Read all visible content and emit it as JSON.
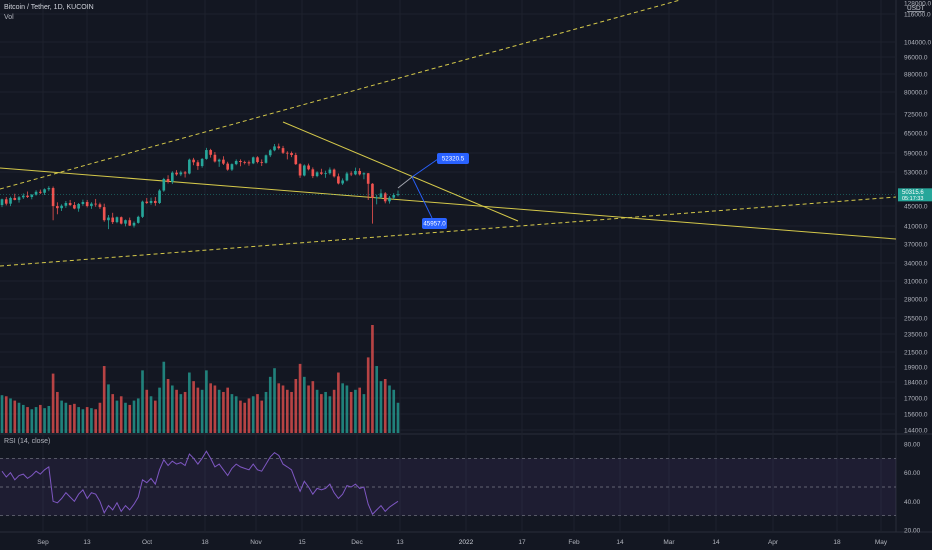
{
  "header": {
    "symbol_line": "Bitcoin / Tether, 1D, KUCOIN",
    "vol_label": "Vol"
  },
  "rsi_label": "RSI (14, close)",
  "price_axis": {
    "currency_tag": "USDT",
    "ticks": [
      "128000.0",
      "116000.0",
      "104000.0",
      "96000.0",
      "88000.0",
      "80000.0",
      "72500.0",
      "65000.0",
      "59000.0",
      "53000.0",
      "45000.0",
      "41000.0",
      "37000.0",
      "34000.0",
      "31000.0",
      "28000.0",
      "25500.0",
      "23500.0",
      "21500.0",
      "19900.0",
      "18400.0",
      "17000.0",
      "15600.0",
      "14400.0"
    ],
    "last_price": "50315.6",
    "countdown": "05:17:33"
  },
  "rsi_axis": {
    "ticks": [
      "80.00",
      "60.00",
      "40.00",
      "20.00"
    ]
  },
  "time_axis": {
    "labels": [
      "Sep",
      "13",
      "Oct",
      "18",
      "Nov",
      "15",
      "Dec",
      "13",
      "2022",
      "17",
      "Feb",
      "14",
      "Mar",
      "14",
      "Apr",
      "18",
      "May"
    ]
  },
  "annotations": {
    "target_up": "52320.5",
    "target_down": "45957.0"
  },
  "colors": {
    "background": "#131722",
    "up": "#26a69a",
    "down": "#ef5350",
    "trendline": "#d4c84a",
    "forecast": "#2962ff",
    "rsi_line": "#7e57c2",
    "last_price_tag": "#26a69a"
  },
  "chart_data": {
    "type": "candlestick",
    "log_scale": true,
    "grid": true,
    "candles_ohlc": [
      [
        47100,
        49000,
        46500,
        48800
      ],
      [
        48800,
        49500,
        47000,
        47500
      ],
      [
        47500,
        49600,
        46800,
        49200
      ],
      [
        49200,
        50500,
        48500,
        48600
      ],
      [
        48600,
        49800,
        47800,
        49400
      ],
      [
        49400,
        50600,
        48900,
        49900
      ],
      [
        49900,
        51200,
        49200,
        49500
      ],
      [
        49500,
        50400,
        48800,
        50200
      ],
      [
        50200,
        51600,
        49900,
        51100
      ],
      [
        51100,
        51800,
        50400,
        50800
      ],
      [
        50800,
        52200,
        50100,
        51900
      ],
      [
        51900,
        52900,
        51300,
        52300
      ],
      [
        52300,
        52800,
        42900,
        46800
      ],
      [
        46800,
        47900,
        44500,
        46200
      ],
      [
        46200,
        47300,
        45400,
        46900
      ],
      [
        46900,
        48300,
        46300,
        47700
      ],
      [
        47700,
        48600,
        46800,
        47100
      ],
      [
        47100,
        48000,
        45900,
        46100
      ],
      [
        46100,
        47700,
        45200,
        47400
      ],
      [
        47400,
        48700,
        46900,
        48000
      ],
      [
        48000,
        48600,
        46400,
        46800
      ],
      [
        46800,
        47900,
        46000,
        47500
      ],
      [
        47500,
        48900,
        46600,
        47300
      ],
      [
        47300,
        47800,
        46000,
        46500
      ],
      [
        46500,
        47500,
        42500,
        42900
      ],
      [
        42900,
        44300,
        40600,
        43600
      ],
      [
        43600,
        44900,
        41900,
        42400
      ],
      [
        42400,
        43900,
        42100,
        43700
      ],
      [
        43700,
        43900,
        41800,
        42000
      ],
      [
        42000,
        43100,
        41300,
        42900
      ],
      [
        42900,
        43600,
        41400,
        41500
      ],
      [
        41500,
        42600,
        41000,
        42200
      ],
      [
        42200,
        44100,
        42000,
        43800
      ],
      [
        43800,
        48400,
        43500,
        48100
      ],
      [
        48100,
        49200,
        47400,
        47700
      ],
      [
        47700,
        49300,
        47200,
        48300
      ],
      [
        48300,
        49500,
        46900,
        47700
      ],
      [
        47700,
        51900,
        47400,
        51500
      ],
      [
        51500,
        55700,
        51100,
        55300
      ],
      [
        55300,
        56600,
        53800,
        54300
      ],
      [
        54300,
        58000,
        53600,
        57500
      ],
      [
        57500,
        58400,
        56400,
        56900
      ],
      [
        56900,
        58200,
        56300,
        57600
      ],
      [
        57600,
        58100,
        55800,
        57200
      ],
      [
        57200,
        62700,
        56900,
        62300
      ],
      [
        62300,
        63000,
        60200,
        61300
      ],
      [
        61300,
        62100,
        58500,
        59900
      ],
      [
        59900,
        62900,
        59300,
        62600
      ],
      [
        62600,
        67000,
        62300,
        66100
      ],
      [
        66100,
        66600,
        63100,
        64200
      ],
      [
        64200,
        65300,
        61200,
        61600
      ],
      [
        61600,
        62700,
        59600,
        62300
      ],
      [
        62300,
        63600,
        60300,
        60800
      ],
      [
        60800,
        61500,
        58200,
        58600
      ],
      [
        58600,
        60900,
        58100,
        60600
      ],
      [
        60600,
        62400,
        60200,
        61800
      ],
      [
        61800,
        62400,
        59800,
        61400
      ],
      [
        61400,
        61900,
        60500,
        61300
      ],
      [
        61300,
        62000,
        60000,
        60900
      ],
      [
        60900,
        63500,
        60600,
        63200
      ],
      [
        63200,
        63600,
        60900,
        61400
      ],
      [
        61400,
        62400,
        59900,
        61100
      ],
      [
        61100,
        64300,
        60800,
        64000
      ],
      [
        64000,
        66500,
        63300,
        66000
      ],
      [
        66000,
        68600,
        65600,
        67600
      ],
      [
        67600,
        68800,
        66300,
        66900
      ],
      [
        66900,
        67800,
        64500,
        65000
      ],
      [
        65000,
        65600,
        62400,
        64900
      ],
      [
        64900,
        65500,
        63300,
        64100
      ],
      [
        64100,
        65000,
        60300,
        60600
      ],
      [
        60600,
        61000,
        55700,
        56500
      ],
      [
        56500,
        60500,
        56200,
        60100
      ],
      [
        60100,
        60800,
        58300,
        58700
      ],
      [
        58700,
        59400,
        55600,
        56300
      ],
      [
        56300,
        58000,
        55900,
        57600
      ],
      [
        57600,
        58900,
        56700,
        57100
      ],
      [
        57100,
        58200,
        55700,
        57300
      ],
      [
        57300,
        59400,
        56800,
        58600
      ],
      [
        58600,
        59000,
        55800,
        56200
      ],
      [
        56200,
        57200,
        53500,
        53800
      ],
      [
        53800,
        55500,
        53300,
        54800
      ],
      [
        54800,
        57800,
        54500,
        57200
      ],
      [
        57200,
        58000,
        56300,
        56900
      ],
      [
        56900,
        59300,
        56600,
        58100
      ],
      [
        58100,
        59100,
        56500,
        56900
      ],
      [
        56900,
        57600,
        55200,
        57300
      ],
      [
        57300,
        57400,
        48600,
        53700
      ],
      [
        53700,
        53900,
        42000,
        49200
      ],
      [
        49200,
        50200,
        47300,
        49400
      ],
      [
        49400,
        51900,
        49000,
        50600
      ],
      [
        50600,
        51000,
        47600,
        48200
      ],
      [
        48200,
        49800,
        47500,
        49300
      ],
      [
        49300,
        50700,
        48800,
        50100
      ],
      [
        50100,
        51500,
        49700,
        50315.6
      ]
    ],
    "volume_relative": [
      0.35,
      0.34,
      0.32,
      0.3,
      0.28,
      0.26,
      0.24,
      0.22,
      0.24,
      0.26,
      0.23,
      0.25,
      0.55,
      0.38,
      0.3,
      0.28,
      0.26,
      0.27,
      0.24,
      0.22,
      0.24,
      0.23,
      0.22,
      0.28,
      0.62,
      0.45,
      0.36,
      0.3,
      0.34,
      0.28,
      0.26,
      0.3,
      0.32,
      0.58,
      0.4,
      0.34,
      0.3,
      0.42,
      0.66,
      0.5,
      0.44,
      0.4,
      0.36,
      0.38,
      0.56,
      0.48,
      0.42,
      0.4,
      0.58,
      0.46,
      0.44,
      0.4,
      0.38,
      0.42,
      0.36,
      0.34,
      0.3,
      0.28,
      0.32,
      0.34,
      0.36,
      0.3,
      0.38,
      0.52,
      0.6,
      0.46,
      0.44,
      0.4,
      0.38,
      0.5,
      0.64,
      0.52,
      0.44,
      0.48,
      0.4,
      0.36,
      0.38,
      0.34,
      0.4,
      0.56,
      0.46,
      0.44,
      0.38,
      0.4,
      0.42,
      0.36,
      0.7,
      1.0,
      0.62,
      0.48,
      0.5,
      0.44,
      0.4,
      0.28
    ],
    "rsi_values": [
      61,
      57,
      60,
      55,
      58,
      59,
      56,
      58,
      61,
      59,
      62,
      64,
      40,
      39,
      42,
      46,
      43,
      40,
      45,
      48,
      42,
      46,
      45,
      40,
      32,
      37,
      34,
      39,
      33,
      37,
      34,
      38,
      43,
      55,
      53,
      56,
      52,
      62,
      69,
      65,
      68,
      66,
      67,
      65,
      73,
      70,
      66,
      70,
      75,
      70,
      64,
      66,
      62,
      58,
      63,
      66,
      64,
      63,
      62,
      66,
      62,
      61,
      66,
      71,
      74,
      72,
      66,
      64,
      62,
      54,
      47,
      54,
      50,
      45,
      49,
      48,
      49,
      52,
      46,
      42,
      45,
      51,
      50,
      52,
      49,
      50,
      38,
      31,
      34,
      37,
      33,
      36,
      38,
      40
    ],
    "rsi_levels": [
      70,
      50,
      30
    ],
    "trendlines_desc": [
      "rising channel top",
      "descending resistance from Nov high",
      "long falling support",
      "rising channel bottom"
    ]
  }
}
